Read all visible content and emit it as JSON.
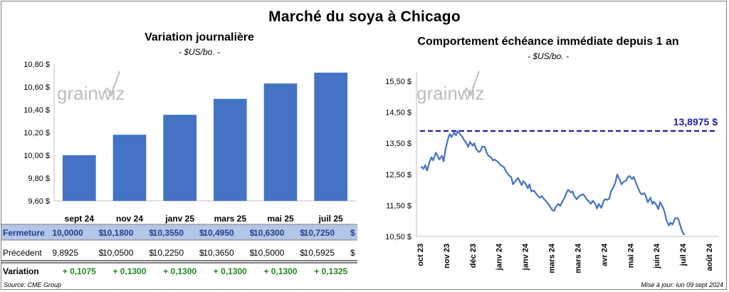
{
  "title": "Marché du soya à Chicago",
  "left_panel": {
    "title": "Variation journalière",
    "unit": "- $US/bo. -"
  },
  "right_panel": {
    "title": "Comportement échéance immédiate depuis 1 an",
    "unit": "- $US/bo. -"
  },
  "logo_text": "grainwiz",
  "colors": {
    "bar": "#4472c4",
    "line": "#4472c4",
    "reference": "#1f1fa8",
    "positive": "#1e8a1e",
    "row_highlight": "#b4c6e7"
  },
  "chart_data": [
    {
      "type": "bar",
      "categories": [
        "sept 24",
        "nov 24",
        "janv 25",
        "mars 25",
        "mai 25",
        "juil 25"
      ],
      "values": [
        10.0,
        10.18,
        10.355,
        10.495,
        10.63,
        10.725
      ],
      "ylim": [
        9.6,
        10.8
      ],
      "yticks": [
        "9,60 $",
        "9,80 $",
        "10,00 $",
        "10,20 $",
        "10,40 $",
        "10,60 $",
        "10,80 $"
      ],
      "grid": false
    },
    {
      "type": "line",
      "x_labels": [
        "oct 23",
        "nov 23",
        "déc 23",
        "janv 24",
        "janv 24",
        "mars 24",
        "mars 24",
        "avr 24",
        "mai 24",
        "juin 24",
        "juil 24",
        "août 24"
      ],
      "x_range": [
        "2023-09-28",
        "2024-08-31"
      ],
      "ylim": [
        10.5,
        15.5
      ],
      "yticks": [
        "10,50 $",
        "11,50 $",
        "12,50 $",
        "13,50 $",
        "14,50 $",
        "15,50 $"
      ],
      "reference": {
        "value": 13.8975,
        "label": "13,8975 $"
      },
      "series": [
        {
          "values": [
            [
              "2023-09-29",
              12.75
            ],
            [
              "2023-10-02",
              12.68
            ],
            [
              "2023-10-04",
              12.8
            ],
            [
              "2023-10-06",
              12.62
            ],
            [
              "2023-10-09",
              12.9
            ],
            [
              "2023-10-11",
              13.05
            ],
            [
              "2023-10-13",
              12.95
            ],
            [
              "2023-10-16",
              13.2
            ],
            [
              "2023-10-18",
              13.1
            ],
            [
              "2023-10-20",
              12.98
            ],
            [
              "2023-10-23",
              13.1
            ],
            [
              "2023-10-25",
              12.92
            ],
            [
              "2023-10-27",
              13.3
            ],
            [
              "2023-10-30",
              13.65
            ],
            [
              "2023-11-01",
              13.8
            ],
            [
              "2023-11-03",
              13.7
            ],
            [
              "2023-11-06",
              13.85
            ],
            [
              "2023-11-08",
              13.75
            ],
            [
              "2023-11-10",
              13.9
            ],
            [
              "2023-11-13",
              13.78
            ],
            [
              "2023-11-15",
              13.72
            ],
            [
              "2023-11-17",
              13.62
            ],
            [
              "2023-11-20",
              13.5
            ],
            [
              "2023-11-22",
              13.38
            ],
            [
              "2023-11-24",
              13.55
            ],
            [
              "2023-11-27",
              13.42
            ],
            [
              "2023-11-29",
              13.5
            ],
            [
              "2023-12-01",
              13.32
            ],
            [
              "2023-12-04",
              13.22
            ],
            [
              "2023-12-06",
              13.25
            ],
            [
              "2023-12-08",
              13.4
            ],
            [
              "2023-12-11",
              13.38
            ],
            [
              "2023-12-13",
              13.2
            ],
            [
              "2023-12-15",
              13.1
            ],
            [
              "2023-12-18",
              13.05
            ],
            [
              "2023-12-20",
              12.95
            ],
            [
              "2023-12-22",
              12.98
            ],
            [
              "2023-12-26",
              12.9
            ],
            [
              "2023-12-28",
              12.82
            ],
            [
              "2024-01-02",
              12.72
            ],
            [
              "2024-01-04",
              12.6
            ],
            [
              "2024-01-08",
              12.45
            ],
            [
              "2024-01-10",
              12.42
            ],
            [
              "2024-01-12",
              12.18
            ],
            [
              "2024-01-16",
              12.32
            ],
            [
              "2024-01-18",
              12.38
            ],
            [
              "2024-01-22",
              12.15
            ],
            [
              "2024-01-24",
              12.28
            ],
            [
              "2024-01-26",
              12.22
            ],
            [
              "2024-01-29",
              12.05
            ],
            [
              "2024-01-31",
              12.18
            ],
            [
              "2024-02-02",
              11.95
            ],
            [
              "2024-02-05",
              11.98
            ],
            [
              "2024-02-07",
              11.9
            ],
            [
              "2024-02-09",
              11.82
            ],
            [
              "2024-02-12",
              11.75
            ],
            [
              "2024-02-14",
              11.8
            ],
            [
              "2024-02-16",
              11.72
            ],
            [
              "2024-02-20",
              11.6
            ],
            [
              "2024-02-22",
              11.52
            ],
            [
              "2024-02-26",
              11.35
            ],
            [
              "2024-02-28",
              11.32
            ],
            [
              "2024-03-01",
              11.45
            ],
            [
              "2024-03-04",
              11.55
            ],
            [
              "2024-03-06",
              11.48
            ],
            [
              "2024-03-08",
              11.6
            ],
            [
              "2024-03-11",
              11.75
            ],
            [
              "2024-03-13",
              11.9
            ],
            [
              "2024-03-15",
              12.0
            ],
            [
              "2024-03-18",
              11.92
            ],
            [
              "2024-03-20",
              11.95
            ],
            [
              "2024-03-22",
              11.8
            ],
            [
              "2024-03-25",
              11.7
            ],
            [
              "2024-03-27",
              11.78
            ],
            [
              "2024-03-29",
              11.82
            ],
            [
              "2024-04-01",
              11.86
            ],
            [
              "2024-04-03",
              11.8
            ],
            [
              "2024-04-05",
              11.7
            ],
            [
              "2024-04-08",
              11.62
            ],
            [
              "2024-04-10",
              11.55
            ],
            [
              "2024-04-12",
              11.65
            ],
            [
              "2024-04-15",
              11.55
            ],
            [
              "2024-04-17",
              11.4
            ],
            [
              "2024-04-19",
              11.55
            ],
            [
              "2024-04-22",
              11.42
            ],
            [
              "2024-04-24",
              11.6
            ],
            [
              "2024-04-26",
              11.7
            ],
            [
              "2024-04-29",
              11.68
            ],
            [
              "2024-05-01",
              11.72
            ],
            [
              "2024-05-03",
              11.95
            ],
            [
              "2024-05-06",
              12.1
            ],
            [
              "2024-05-08",
              12.25
            ],
            [
              "2024-05-10",
              12.5
            ],
            [
              "2024-05-13",
              12.32
            ],
            [
              "2024-05-15",
              12.18
            ],
            [
              "2024-05-17",
              12.25
            ],
            [
              "2024-05-20",
              12.3
            ],
            [
              "2024-05-22",
              12.4
            ],
            [
              "2024-05-24",
              12.45
            ],
            [
              "2024-05-27",
              12.35
            ],
            [
              "2024-05-29",
              12.42
            ],
            [
              "2024-05-31",
              12.25
            ],
            [
              "2024-06-03",
              12.05
            ],
            [
              "2024-06-05",
              11.92
            ],
            [
              "2024-06-07",
              11.85
            ],
            [
              "2024-06-10",
              11.9
            ],
            [
              "2024-06-12",
              11.78
            ],
            [
              "2024-06-14",
              11.6
            ],
            [
              "2024-06-17",
              11.75
            ],
            [
              "2024-06-19",
              11.55
            ],
            [
              "2024-06-21",
              11.62
            ],
            [
              "2024-06-24",
              11.5
            ],
            [
              "2024-06-26",
              11.38
            ],
            [
              "2024-06-28",
              11.6
            ],
            [
              "2024-07-01",
              11.45
            ],
            [
              "2024-07-03",
              11.3
            ],
            [
              "2024-07-05",
              11.05
            ],
            [
              "2024-07-08",
              10.85
            ],
            [
              "2024-07-10",
              10.95
            ],
            [
              "2024-07-12",
              10.88
            ],
            [
              "2024-07-15",
              11.08
            ],
            [
              "2024-07-17",
              11.1
            ],
            [
              "2024-07-19",
              11.05
            ],
            [
              "2024-07-22",
              10.75
            ],
            [
              "2024-07-24",
              10.62
            ],
            [
              "2024-07-26",
              10.55
            ]
          ]
        }
      ]
    }
  ],
  "table": {
    "rows": [
      {
        "label": "Fermeture",
        "values": [
          "10,0000",
          "10,1800",
          "10,3550",
          "10,4950",
          "10,6300",
          "10,7250"
        ],
        "currency": "$"
      },
      {
        "label": "Précédent",
        "values": [
          "9,8925",
          "10,0500",
          "10,2250",
          "10,3650",
          "10,5000",
          "10,5925"
        ],
        "currency": "$"
      },
      {
        "label": "Variation",
        "values": [
          "+ 0,1075",
          "+ 0,1300",
          "+ 0,1300",
          "+ 0,1300",
          "+ 0,1300",
          "+ 0,1325"
        ]
      }
    ]
  },
  "footer": {
    "source": "Source: CME Group",
    "updated": "Mise à jour: lun 09 sept 2024"
  }
}
